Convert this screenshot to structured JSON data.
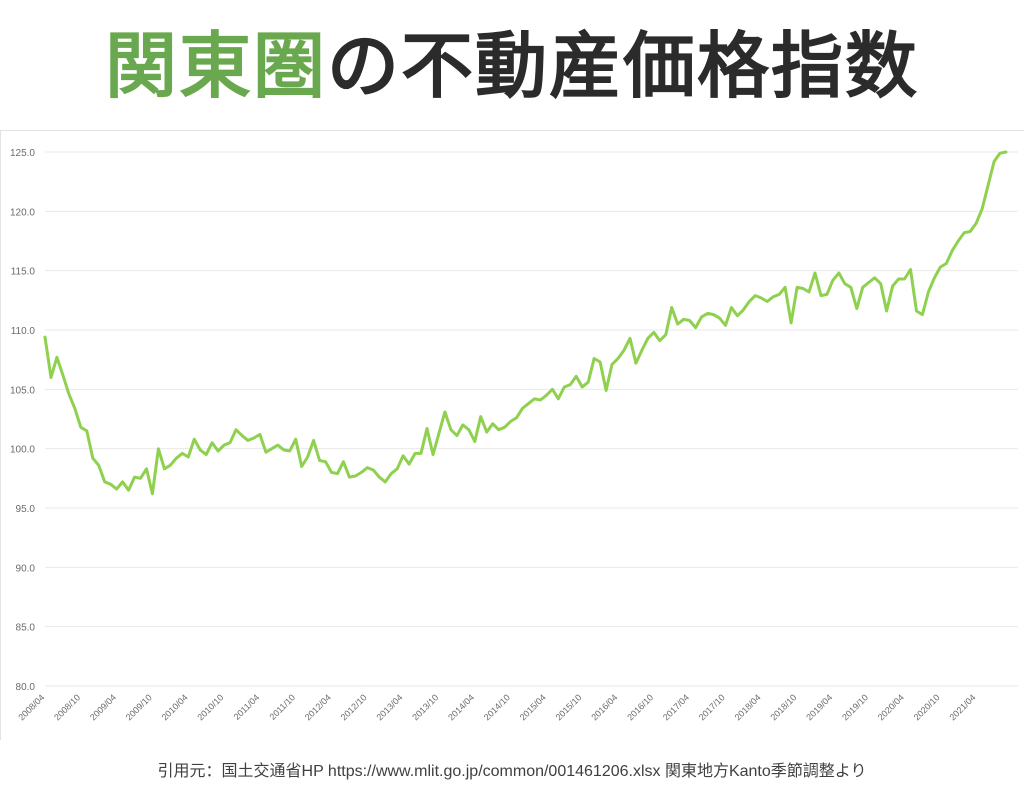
{
  "title": {
    "highlight": "関東圏",
    "rest": "の不動産価格指数",
    "highlight_color": "#6aa84f"
  },
  "source": "引用元：国土交通省HP https://www.mlit.go.jp/common/001461206.xlsx 関東地方Kanto季節調整より",
  "chart_data": {
    "type": "line",
    "title": "",
    "xlabel": "",
    "ylabel": "",
    "ylim": [
      80,
      125
    ],
    "yticks": [
      "80.0",
      "85.0",
      "90.0",
      "95.0",
      "100.0",
      "105.0",
      "110.0",
      "115.0",
      "120.0",
      "125.0"
    ],
    "grid": true,
    "legend": "none",
    "line_color": "#8fd14f",
    "start": "2008/04",
    "xtick_labels": [
      "2008/04",
      "2008/10",
      "2009/04",
      "2009/10",
      "2010/04",
      "2010/10",
      "2011/04",
      "2011/10",
      "2012/04",
      "2012/10",
      "2013/04",
      "2013/10",
      "2014/04",
      "2014/10",
      "2015/04",
      "2015/10",
      "2016/04",
      "2016/10",
      "2017/04",
      "2017/10",
      "2018/04",
      "2018/10",
      "2019/04",
      "2019/10",
      "2020/04",
      "2020/10",
      "2021/04"
    ],
    "series": [
      {
        "name": "",
        "values": [
          109.4,
          106.0,
          107.7,
          106.2,
          104.6,
          103.4,
          101.8,
          101.5,
          99.2,
          98.6,
          97.2,
          97.0,
          96.6,
          97.2,
          96.5,
          97.6,
          97.5,
          98.3,
          96.2,
          100.0,
          98.3,
          98.6,
          99.2,
          99.6,
          99.3,
          100.8,
          99.9,
          99.5,
          100.5,
          99.8,
          100.3,
          100.5,
          101.6,
          101.1,
          100.7,
          100.9,
          101.2,
          99.7,
          100.0,
          100.3,
          99.9,
          99.8,
          100.8,
          98.5,
          99.3,
          100.7,
          99.0,
          98.9,
          98.0,
          97.9,
          98.9,
          97.6,
          97.7,
          98.0,
          98.4,
          98.2,
          97.6,
          97.2,
          97.9,
          98.3,
          99.4,
          98.7,
          99.6,
          99.6,
          101.7,
          99.5,
          101.3,
          103.1,
          101.6,
          101.1,
          102.0,
          101.6,
          100.6,
          102.7,
          101.4,
          102.1,
          101.6,
          101.8,
          102.3,
          102.6,
          103.4,
          103.8,
          104.2,
          104.1,
          104.5,
          105.0,
          104.2,
          105.2,
          105.4,
          106.1,
          105.2,
          105.6,
          107.6,
          107.3,
          104.9,
          107.1,
          107.6,
          108.3,
          109.3,
          107.2,
          108.3,
          109.3,
          109.8,
          109.1,
          109.6,
          111.9,
          110.5,
          110.9,
          110.8,
          110.2,
          111.1,
          111.4,
          111.3,
          111.0,
          110.4,
          111.9,
          111.2,
          111.7,
          112.4,
          112.9,
          112.7,
          112.4,
          112.8,
          113.0,
          113.6,
          110.6,
          113.6,
          113.5,
          113.2,
          114.8,
          112.9,
          113.0,
          114.2,
          114.8,
          113.9,
          113.6,
          111.8,
          113.6,
          114.0,
          114.4,
          113.9,
          111.6,
          113.7,
          114.3,
          114.3,
          115.1,
          111.6,
          111.3,
          113.2,
          114.4,
          115.3,
          115.6,
          116.7,
          117.5,
          118.2,
          118.3,
          119.0,
          120.2,
          122.2,
          124.2,
          124.9,
          125.0
        ]
      }
    ]
  }
}
